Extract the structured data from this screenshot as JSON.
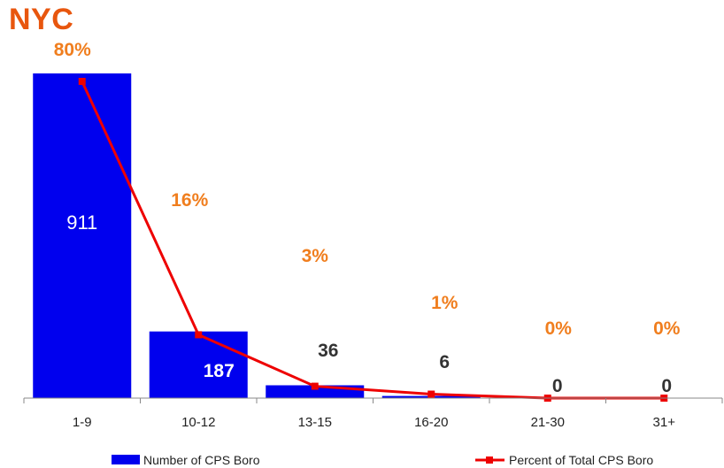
{
  "chart_data": {
    "type": "bar",
    "title": "NYC",
    "categories": [
      "1-9",
      "10-12",
      "13-15",
      "16-20",
      "21-30",
      "31+"
    ],
    "series": [
      {
        "name": "Number of CPS Boro",
        "type": "bar",
        "values": [
          911,
          187,
          36,
          6,
          0,
          0
        ],
        "labels": [
          "911",
          "187",
          "36",
          "6",
          "0",
          "0"
        ],
        "color": "#0000ee"
      },
      {
        "name": "Percent of Total CPS Boro",
        "type": "line",
        "values": [
          80,
          16,
          3,
          1,
          0,
          0
        ],
        "labels": [
          "80%",
          "16%",
          "3%",
          "1%",
          "0%",
          "0%"
        ],
        "color": "#ee0000"
      }
    ],
    "label_color_percent": "#f07e1e",
    "legend_position": "bottom",
    "grid": false
  }
}
